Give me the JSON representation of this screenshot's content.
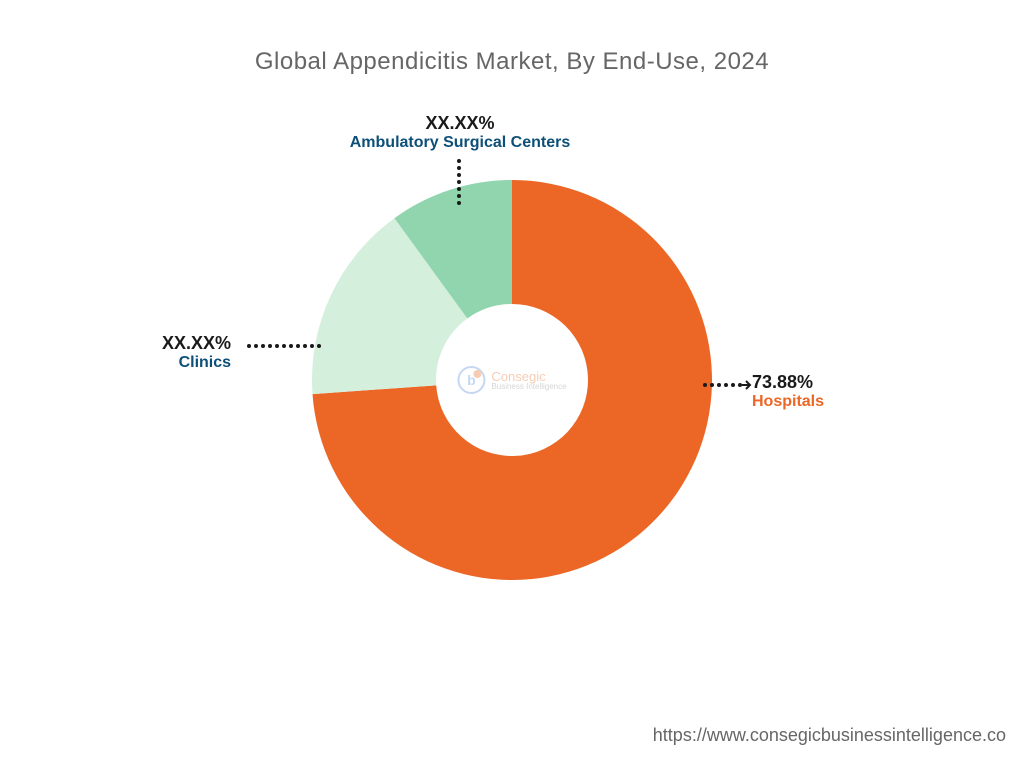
{
  "chart": {
    "type": "donut",
    "title": "Global Appendicitis Market, By End-Use, 2024",
    "title_fontsize": 24,
    "title_color": "#666666",
    "background_color": "#ffffff",
    "outer_radius": 200,
    "inner_radius_ratio": 0.38,
    "segments": [
      {
        "label": "Hospitals",
        "value": 73.88,
        "display_pct": "73.88%",
        "color": "#ec6726",
        "label_color": "#ec6726"
      },
      {
        "label": "Clinics",
        "value": 16.12,
        "display_pct": "XX.XX%",
        "color": "#d5efdd",
        "label_color": "#0d4f78"
      },
      {
        "label": "Ambulatory Surgical Centers",
        "value": 10.0,
        "display_pct": "XX.XX%",
        "color": "#91d5ae",
        "label_color": "#0d4f78"
      }
    ],
    "center_logo": {
      "brand": "Consegic",
      "tagline": "Business Intelligence",
      "brand_color": "#e8702a",
      "icon_color": "#5b8fd8"
    },
    "callout_dot_color": "#1a1a1a",
    "callout_dot_radius": 2,
    "callout_dot_gap": 7
  },
  "footer": {
    "url": "https://www.consegicbusinessintelligence.co",
    "color": "#666666",
    "fontsize": 18
  }
}
